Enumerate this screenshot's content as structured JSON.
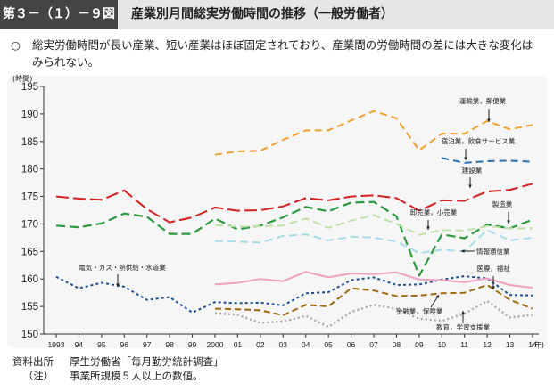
{
  "header": {
    "figure_label": "第３－（１）－９図",
    "title": "産業別月間総実労働時間の推移（一般労働者）"
  },
  "summary": {
    "bullet": "○",
    "text": "総実労働時間が長い産業、短い産業はほぼ固定されており、産業間の労働時間の差には大きな変化はみられない。"
  },
  "footer": {
    "source_label": "資料出所",
    "source_text": "厚生労働省「毎月勤労統計調査」",
    "note_label": "（注）",
    "note_text": "事業所規模５人以上の数値。"
  },
  "chart_data": {
    "type": "line",
    "ylabel": "(時間)",
    "xlabel": "(年)",
    "ylim": [
      150,
      195
    ],
    "yticks": [
      150,
      155,
      160,
      165,
      170,
      175,
      180,
      185,
      190,
      195
    ],
    "x": [
      1993,
      1994,
      1995,
      1996,
      1997,
      1998,
      1999,
      2000,
      2001,
      2002,
      2003,
      2004,
      2005,
      2006,
      2007,
      2008,
      2009,
      2010,
      2011,
      2012,
      2013,
      2014
    ],
    "xtick_labels": [
      "1993",
      "94",
      "95",
      "96",
      "97",
      "98",
      "99",
      "2000",
      "01",
      "02",
      "03",
      "04",
      "05",
      "06",
      "07",
      "08",
      "09",
      "10",
      "11",
      "12",
      "13",
      "14"
    ],
    "grid": false,
    "series": [
      {
        "name": "運輸業，郵便業",
        "color": "#f0a030",
        "dash": "8,5",
        "width": 2,
        "values": [
          null,
          null,
          null,
          null,
          null,
          null,
          null,
          182.6,
          183.2,
          183.3,
          185.3,
          187.0,
          187.0,
          188.8,
          190.5,
          189.2,
          183.4,
          186.4,
          186.4,
          188.7,
          187.2,
          188.0
        ]
      },
      {
        "name": "宿泊業，飲食サービス業",
        "color": "#2a6fb0",
        "dash": "8,5",
        "width": 2,
        "values": [
          null,
          null,
          null,
          null,
          null,
          null,
          null,
          null,
          null,
          null,
          null,
          null,
          null,
          null,
          null,
          null,
          null,
          182.0,
          181.1,
          181.4,
          181.5,
          181.3
        ]
      },
      {
        "name": "建設業",
        "color": "#d42020",
        "dash": "14,5",
        "width": 2,
        "values": [
          175.0,
          174.6,
          174.4,
          176.1,
          172.7,
          170.3,
          171.2,
          173.0,
          172.4,
          172.5,
          173.2,
          174.7,
          174.3,
          175.0,
          175.2,
          174.7,
          172.4,
          174.3,
          174.2,
          175.9,
          176.2,
          177.3
        ]
      },
      {
        "name": "製造業",
        "color": "#2b9a3e",
        "dash": "10,5",
        "width": 2.2,
        "values": [
          169.7,
          169.4,
          170.1,
          171.9,
          171.3,
          168.2,
          168.2,
          171.0,
          169.0,
          169.7,
          171.2,
          173.1,
          172.3,
          173.9,
          174.0,
          171.4,
          160.6,
          168.1,
          167.4,
          169.9,
          169.2,
          170.8
        ]
      },
      {
        "name": "卸売業，小売業",
        "color": "#bfe0a8",
        "dash": "9,5",
        "width": 2,
        "values": [
          null,
          null,
          null,
          null,
          null,
          null,
          null,
          169.8,
          169.5,
          169.6,
          169.7,
          171.0,
          169.3,
          170.6,
          171.6,
          170.0,
          168.0,
          168.9,
          168.8,
          169.6,
          169.2,
          169.2
        ]
      },
      {
        "name": "情報通信業",
        "color": "#a8dcea",
        "dash": "9,5",
        "width": 2,
        "values": [
          null,
          null,
          null,
          null,
          null,
          null,
          null,
          166.9,
          166.8,
          166.6,
          167.8,
          168.1,
          167.0,
          167.7,
          167.5,
          166.8,
          164.7,
          165.3,
          165.0,
          168.9,
          167.0,
          167.5
        ]
      },
      {
        "name": "電気・ガス・熱供給・水道業",
        "color": "#1c4f91",
        "dash": "3,3",
        "width": 2,
        "values": [
          160.4,
          158.3,
          159.3,
          158.6,
          156.2,
          156.7,
          153.9,
          155.8,
          155.6,
          155.7,
          155.2,
          157.4,
          157.6,
          159.8,
          160.3,
          158.9,
          159.0,
          159.9,
          160.5,
          160.1,
          157.1,
          157.0
        ]
      },
      {
        "name": "医療，福祉",
        "color": "#f0a0c0",
        "dash": "none",
        "width": 2,
        "values": [
          null,
          null,
          null,
          null,
          null,
          null,
          null,
          159.0,
          159.3,
          160.0,
          159.6,
          161.3,
          160.3,
          161.0,
          160.9,
          161.2,
          159.9,
          159.8,
          159.4,
          160.1,
          158.9,
          158.4
        ]
      },
      {
        "name": "金融業，保険業",
        "color": "#a06a10",
        "dash": "7,4",
        "width": 2,
        "values": [
          null,
          null,
          null,
          null,
          null,
          null,
          null,
          154.6,
          154.5,
          154.3,
          153.4,
          155.3,
          155.0,
          158.3,
          157.9,
          156.9,
          157.0,
          157.4,
          157.5,
          158.9,
          156.2,
          154.6
        ]
      },
      {
        "name": "教育，学習支援業",
        "color": "#aaaaaa",
        "dash": "2,3",
        "width": 2.4,
        "values": [
          null,
          null,
          null,
          null,
          null,
          null,
          null,
          153.8,
          153.5,
          152.0,
          152.3,
          153.3,
          151.3,
          154.0,
          155.3,
          154.6,
          152.8,
          152.4,
          153.7,
          156.0,
          153.0,
          153.5
        ]
      }
    ],
    "annotations": [
      {
        "text": "運輸業，郵便業",
        "series": 0
      },
      {
        "text": "宿泊業，飲食サービス業",
        "series": 1
      },
      {
        "text": "建設業",
        "series": 2
      },
      {
        "text": "製造業",
        "series": 3
      },
      {
        "text": "卸売業，小売業",
        "series": 4
      },
      {
        "text": "情報通信業",
        "series": 5
      },
      {
        "text": "電気・ガス・熱供給・水道業",
        "series": 6
      },
      {
        "text": "医療，福祉",
        "series": 7
      },
      {
        "text": "金融業，保険業",
        "series": 8
      },
      {
        "text": "教育，学習支援業",
        "series": 9
      }
    ]
  }
}
